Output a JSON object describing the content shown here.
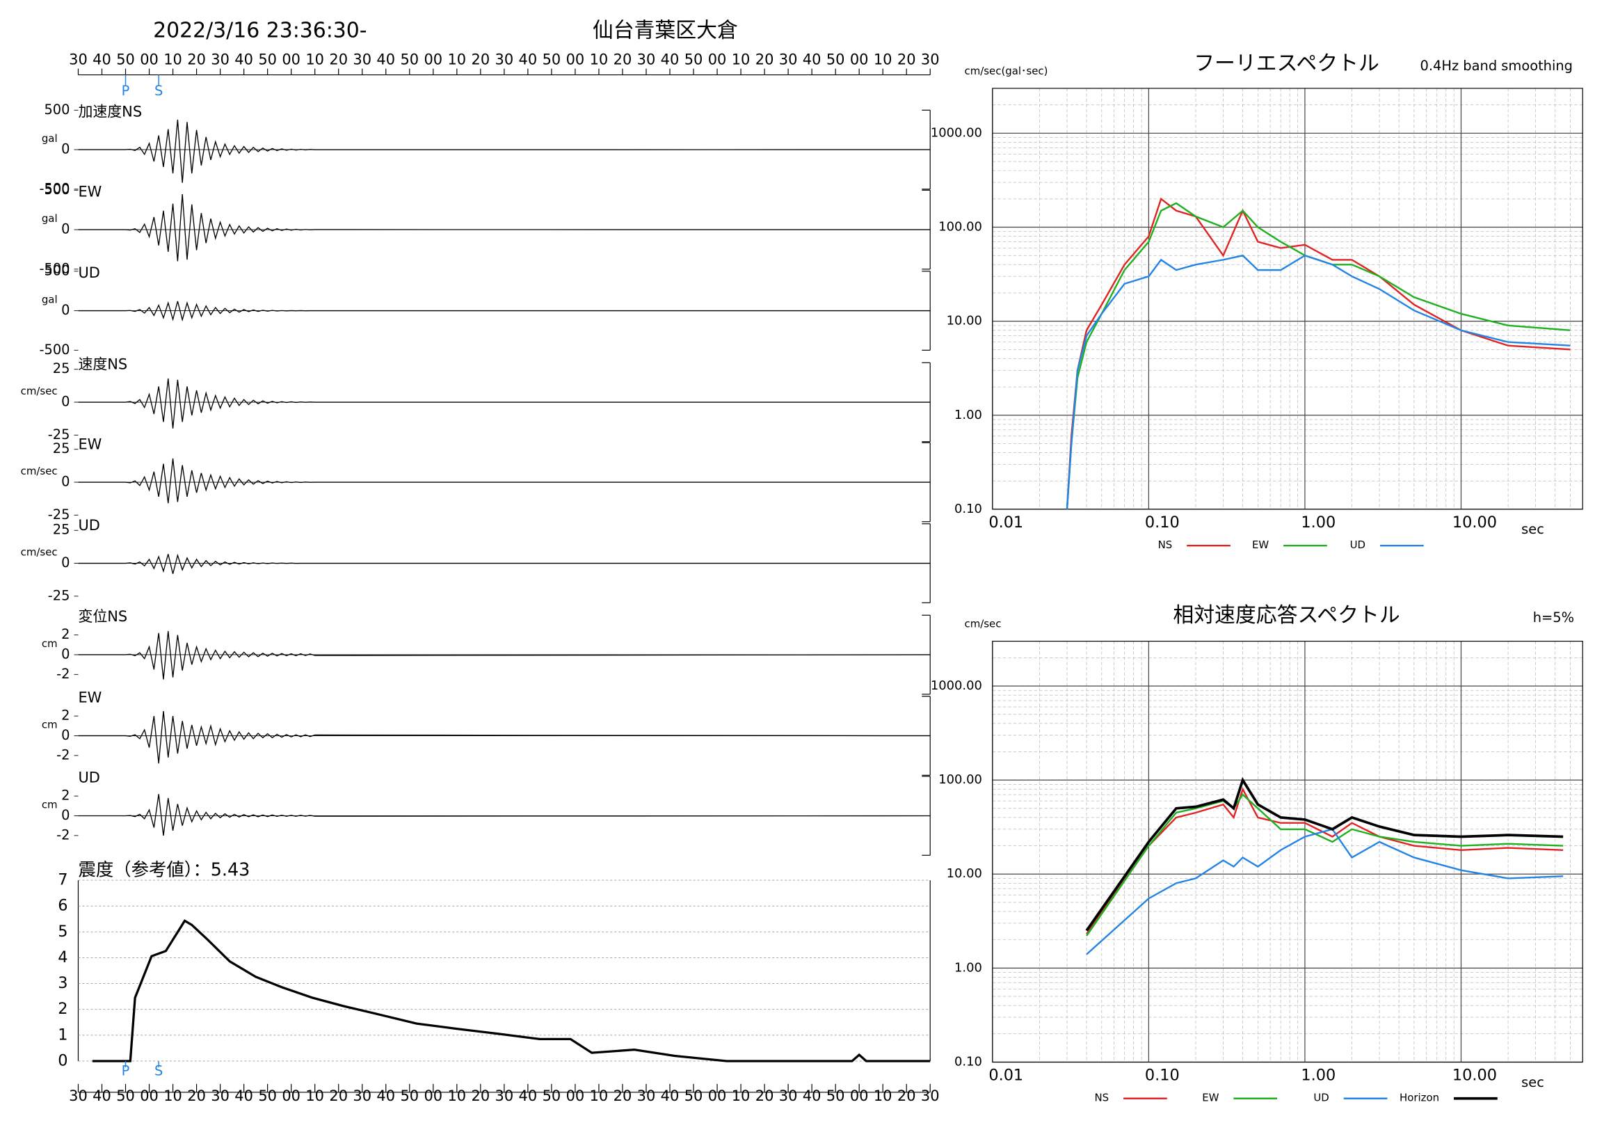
{
  "header": {
    "datetime": "2022/3/16 23:36:30-",
    "station": "仙台青葉区大倉"
  },
  "chart_data": [
    {
      "type": "waveform",
      "xlim": [
        0,
        360
      ],
      "xticks": [
        {
          "value": 0,
          "label": "30"
        },
        {
          "value": 10,
          "label": "40"
        },
        {
          "value": 20,
          "label": "50"
        },
        {
          "value": 30,
          "label": "00"
        },
        {
          "value": 40,
          "label": "10"
        },
        {
          "value": 50,
          "label": "20"
        },
        {
          "value": 60,
          "label": "30"
        },
        {
          "value": 70,
          "label": "40"
        },
        {
          "value": 80,
          "label": "50"
        },
        {
          "value": 90,
          "label": "00"
        },
        {
          "value": 100,
          "label": "10"
        },
        {
          "value": 110,
          "label": "20"
        },
        {
          "value": 120,
          "label": "30"
        },
        {
          "value": 130,
          "label": "40"
        },
        {
          "value": 140,
          "label": "50"
        },
        {
          "value": 150,
          "label": "00"
        },
        {
          "value": 160,
          "label": "10"
        },
        {
          "value": 170,
          "label": "20"
        },
        {
          "value": 180,
          "label": "30"
        },
        {
          "value": 190,
          "label": "40"
        },
        {
          "value": 200,
          "label": "50"
        },
        {
          "value": 210,
          "label": "00"
        },
        {
          "value": 220,
          "label": "10"
        },
        {
          "value": 230,
          "label": "20"
        },
        {
          "value": 240,
          "label": "30"
        },
        {
          "value": 250,
          "label": "40"
        },
        {
          "value": 260,
          "label": "50"
        },
        {
          "value": 270,
          "label": "00"
        },
        {
          "value": 280,
          "label": "10"
        },
        {
          "value": 290,
          "label": "20"
        },
        {
          "value": 300,
          "label": "30"
        },
        {
          "value": 310,
          "label": "40"
        },
        {
          "value": 320,
          "label": "50"
        },
        {
          "value": 330,
          "label": "00"
        },
        {
          "value": 340,
          "label": "10"
        },
        {
          "value": 350,
          "label": "20"
        },
        {
          "value": 360,
          "label": "30"
        }
      ],
      "markers": [
        {
          "label": "P",
          "value": 20
        },
        {
          "label": "S",
          "value": 34
        }
      ],
      "x": [
        0,
        20,
        22,
        24,
        26,
        28,
        30,
        32,
        34,
        36,
        38,
        40,
        42,
        44,
        46,
        48,
        50,
        52,
        54,
        56,
        58,
        60,
        62,
        64,
        66,
        68,
        70,
        72,
        74,
        76,
        78,
        80,
        82,
        84,
        86,
        88,
        90,
        92,
        94,
        96,
        98,
        100,
        360
      ],
      "panels": [
        {
          "name": "加速度NS",
          "unit": "gal",
          "ylim": [
            -500,
            500
          ],
          "yticks": [
            500,
            0,
            -500
          ],
          "values": [
            0,
            0,
            5,
            -10,
            30,
            -60,
            80,
            -150,
            180,
            -220,
            260,
            -300,
            380,
            -420,
            350,
            -300,
            250,
            -200,
            160,
            -130,
            100,
            -90,
            70,
            -60,
            50,
            -45,
            40,
            -35,
            30,
            -25,
            20,
            -18,
            15,
            -12,
            10,
            -8,
            6,
            -5,
            4,
            -3,
            2,
            -1,
            0
          ]
        },
        {
          "name": "EW",
          "unit": "gal",
          "ylim": [
            -500,
            500
          ],
          "yticks": [
            500,
            0,
            -500
          ],
          "values": [
            0,
            0,
            -5,
            12,
            -35,
            70,
            -90,
            160,
            -200,
            240,
            -280,
            330,
            -400,
            450,
            -380,
            320,
            -260,
            210,
            -170,
            140,
            -110,
            95,
            -80,
            65,
            -55,
            48,
            -42,
            36,
            -30,
            26,
            -22,
            18,
            -15,
            12,
            -10,
            8,
            -6,
            5,
            -4,
            3,
            -2,
            1,
            0
          ]
        },
        {
          "name": "UD",
          "unit": "gal",
          "ylim": [
            -500,
            500
          ],
          "yticks": [
            500,
            0,
            -500
          ],
          "values": [
            0,
            0,
            3,
            -8,
            15,
            -30,
            40,
            -60,
            70,
            -90,
            100,
            -110,
            120,
            -115,
            100,
            -90,
            80,
            -70,
            60,
            -50,
            40,
            -35,
            30,
            -25,
            20,
            -18,
            15,
            -12,
            10,
            -8,
            6,
            -5,
            4,
            -3,
            2,
            -2,
            1,
            -1,
            1,
            -1,
            0,
            0,
            0
          ]
        },
        {
          "name": "速度NS",
          "unit": "cm/sec",
          "ylim": [
            -30,
            30
          ],
          "yticks": [
            25,
            0,
            -25
          ],
          "values": [
            0,
            0,
            0.5,
            -1,
            2,
            -4,
            6,
            -9,
            12,
            -15,
            18,
            -20,
            17,
            -15,
            12,
            -10,
            9,
            -8,
            7,
            -6,
            5,
            -4.5,
            4,
            -3.5,
            3,
            -2.5,
            2,
            -1.8,
            1.5,
            -1.2,
            1,
            -0.8,
            0.6,
            -0.5,
            0.4,
            -0.3,
            0.3,
            -0.2,
            0.2,
            -0.1,
            0.1,
            0,
            0
          ]
        },
        {
          "name": "EW",
          "unit": "cm/sec",
          "ylim": [
            -30,
            30
          ],
          "yticks": [
            25,
            0,
            -25
          ],
          "values": [
            0,
            0,
            -0.5,
            1,
            -2.5,
            4,
            -6,
            8,
            -11,
            14,
            -16,
            18,
            -15,
            13,
            -11,
            9,
            -8,
            7,
            -6,
            5.5,
            -5,
            4.5,
            -4,
            3.5,
            -3,
            2.5,
            -2,
            1.8,
            -1.5,
            1.2,
            -1,
            0.8,
            -0.6,
            0.5,
            -0.4,
            0.3,
            -0.3,
            0.2,
            -0.2,
            0.1,
            -0.1,
            0,
            0
          ]
        },
        {
          "name": "UD",
          "unit": "cm/sec",
          "ylim": [
            -30,
            30
          ],
          "yticks": [
            25,
            0,
            -25
          ],
          "values": [
            0,
            0,
            0.3,
            -0.6,
            1,
            -2,
            3,
            -4,
            5,
            -6,
            7,
            -8,
            6,
            -5,
            4,
            -3.5,
            3,
            -2.5,
            2,
            -1.8,
            1.5,
            -1.2,
            1,
            -0.8,
            0.7,
            -0.6,
            0.5,
            -0.4,
            0.3,
            -0.3,
            0.2,
            -0.2,
            0.2,
            -0.1,
            0.1,
            -0.1,
            0.1,
            -0.1,
            0,
            0,
            0,
            0,
            0
          ]
        },
        {
          "name": "変位NS",
          "unit": "cm",
          "ylim": [
            -4,
            4
          ],
          "yticks": [
            2,
            0,
            -2
          ],
          "values": [
            0,
            0,
            0.05,
            -0.1,
            0.2,
            -0.4,
            0.8,
            -1.5,
            2.2,
            -2.5,
            2.4,
            -2.3,
            2,
            -1.6,
            1.2,
            -1,
            0.8,
            -0.7,
            0.6,
            -0.5,
            0.45,
            -0.4,
            0.35,
            -0.3,
            0.3,
            -0.25,
            0.25,
            -0.2,
            0.2,
            -0.2,
            0.15,
            -0.15,
            0.15,
            -0.12,
            0.12,
            -0.1,
            0.1,
            -0.1,
            0.1,
            -0.08,
            0.08,
            -0.08,
            0
          ]
        },
        {
          "name": "EW",
          "unit": "cm",
          "ylim": [
            -4,
            4
          ],
          "yticks": [
            2,
            0,
            -2
          ],
          "values": [
            0,
            0,
            -0.05,
            0.1,
            -0.3,
            0.6,
            -1.2,
            2,
            -2.8,
            2.5,
            -2.2,
            2,
            -1.8,
            1.5,
            -1.3,
            1.1,
            -1,
            0.9,
            -0.8,
            1,
            -0.9,
            0.7,
            -0.6,
            0.5,
            -0.45,
            0.4,
            -0.35,
            0.3,
            -0.3,
            0.25,
            -0.2,
            0.2,
            -0.2,
            0.15,
            -0.15,
            0.12,
            -0.12,
            0.1,
            -0.1,
            0.1,
            -0.08,
            0.08,
            0
          ]
        },
        {
          "name": "UD",
          "unit": "cm",
          "ylim": [
            -4,
            4
          ],
          "yticks": [
            2,
            0,
            -2
          ],
          "values": [
            0,
            0,
            0.03,
            -0.08,
            0.15,
            -0.3,
            0.6,
            -1.2,
            2.2,
            -2,
            1.8,
            -1.5,
            1.2,
            -1,
            0.8,
            -0.6,
            0.5,
            -0.4,
            0.35,
            -0.3,
            0.25,
            -0.2,
            0.2,
            -0.15,
            0.15,
            -0.12,
            0.12,
            -0.1,
            0.1,
            -0.1,
            0.08,
            -0.08,
            0.08,
            -0.06,
            0.06,
            -0.05,
            0.05,
            -0.05,
            0.05,
            -0.04,
            0.04,
            -0.04,
            0
          ]
        }
      ]
    },
    {
      "type": "line",
      "title": "震度（参考値）：5.43",
      "color": "#000000",
      "xlim": [
        0,
        360
      ],
      "ylim": [
        0,
        7
      ],
      "yticks": [
        0,
        1,
        2,
        3,
        4,
        5,
        6,
        7
      ],
      "grid": true,
      "x": [
        6,
        22,
        24,
        31,
        37,
        45,
        48,
        55,
        64,
        75,
        86,
        99,
        112,
        125,
        143,
        160,
        178,
        195,
        208,
        217,
        235,
        252,
        274,
        327,
        330,
        333,
        360
      ],
      "values": [
        0,
        0,
        2.45,
        4.06,
        4.26,
        5.43,
        5.27,
        4.67,
        3.86,
        3.26,
        2.86,
        2.45,
        2.13,
        1.85,
        1.45,
        1.25,
        1.05,
        0.85,
        0.85,
        0.32,
        0.44,
        0.2,
        0,
        0,
        0.24,
        0,
        0
      ]
    },
    {
      "type": "loglog",
      "title": "フーリエスペクトル",
      "subtitle": "0.4Hz band smoothing",
      "y_label": "cm/sec(gal･sec)",
      "x_label": "sec",
      "log_x": true,
      "log_y": true,
      "grid": true,
      "xlim": [
        0.01,
        60
      ],
      "ylim": [
        0.1,
        3000
      ],
      "xticks": [
        {
          "value": 0.01,
          "label": "0.01"
        },
        {
          "value": 0.1,
          "label": "0.10"
        },
        {
          "value": 1,
          "label": "1.00"
        },
        {
          "value": 10,
          "label": "10.00"
        }
      ],
      "yticks": [
        {
          "value": 0.1,
          "label": "0.10"
        },
        {
          "value": 1,
          "label": "1.00"
        },
        {
          "value": 10,
          "label": "10.00"
        },
        {
          "value": 100,
          "label": "100.00"
        },
        {
          "value": 1000,
          "label": "1000.00"
        }
      ],
      "x": [
        0.03,
        0.032,
        0.035,
        0.04,
        0.05,
        0.07,
        0.1,
        0.12,
        0.15,
        0.2,
        0.3,
        0.4,
        0.5,
        0.7,
        1.0,
        1.5,
        2,
        3,
        5,
        10,
        20,
        50
      ],
      "series": [
        {
          "name": "NS",
          "color": "#e02424",
          "values": [
            0.1,
            0.6,
            3,
            8,
            15,
            40,
            80,
            200,
            150,
            130,
            50,
            150,
            70,
            60,
            65,
            45,
            45,
            30,
            15,
            8,
            5.5,
            5
          ]
        },
        {
          "name": "EW",
          "color": "#1fb01f",
          "values": [
            0.1,
            0.5,
            2.5,
            6,
            12,
            35,
            70,
            150,
            180,
            130,
            100,
            150,
            100,
            70,
            50,
            40,
            40,
            30,
            18,
            12,
            9,
            8
          ]
        },
        {
          "name": "UD",
          "color": "#2384e6",
          "values": [
            0.1,
            0.5,
            3,
            7,
            12,
            25,
            30,
            45,
            35,
            40,
            45,
            50,
            35,
            35,
            50,
            40,
            30,
            22,
            13,
            8,
            6,
            5.5
          ]
        }
      ]
    },
    {
      "type": "loglog",
      "title": "相対速度応答スペクトル",
      "subtitle": "h=5%",
      "y_label": "cm/sec",
      "x_label": "sec",
      "log_x": true,
      "log_y": true,
      "grid": true,
      "xlim": [
        0.01,
        60
      ],
      "ylim": [
        0.1,
        3000
      ],
      "xticks": [
        {
          "value": 0.01,
          "label": "0.01"
        },
        {
          "value": 0.1,
          "label": "0.10"
        },
        {
          "value": 1,
          "label": "1.00"
        },
        {
          "value": 10,
          "label": "10.00"
        }
      ],
      "yticks": [
        {
          "value": 0.1,
          "label": "0.10"
        },
        {
          "value": 1,
          "label": "1.00"
        },
        {
          "value": 10,
          "label": "10.00"
        },
        {
          "value": 100,
          "label": "100.00"
        },
        {
          "value": 1000,
          "label": "1000.00"
        }
      ],
      "x": [
        0.04,
        0.1,
        0.15,
        0.2,
        0.3,
        0.35,
        0.4,
        0.5,
        0.7,
        1.0,
        1.5,
        2,
        3,
        5,
        10,
        20,
        45
      ],
      "series": [
        {
          "name": "NS",
          "color": "#e02424",
          "values": [
            2.3,
            20,
            40,
            45,
            55,
            40,
            80,
            40,
            35,
            35,
            25,
            35,
            25,
            20,
            18,
            19,
            18
          ]
        },
        {
          "name": "EW",
          "color": "#1fb01f",
          "values": [
            2.2,
            20,
            45,
            50,
            60,
            50,
            70,
            50,
            30,
            30,
            22,
            30,
            25,
            22,
            20,
            21,
            20
          ]
        },
        {
          "name": "UD",
          "color": "#2384e6",
          "values": [
            1.4,
            5.5,
            8,
            9,
            14,
            12,
            15,
            12,
            18,
            25,
            30,
            15,
            22,
            15,
            11,
            9,
            9.5
          ]
        },
        {
          "name": "Horizon",
          "color": "#000000",
          "values": [
            2.5,
            22,
            50,
            52,
            62,
            50,
            100,
            55,
            40,
            38,
            30,
            40,
            32,
            26,
            25,
            26,
            25
          ]
        }
      ]
    }
  ]
}
